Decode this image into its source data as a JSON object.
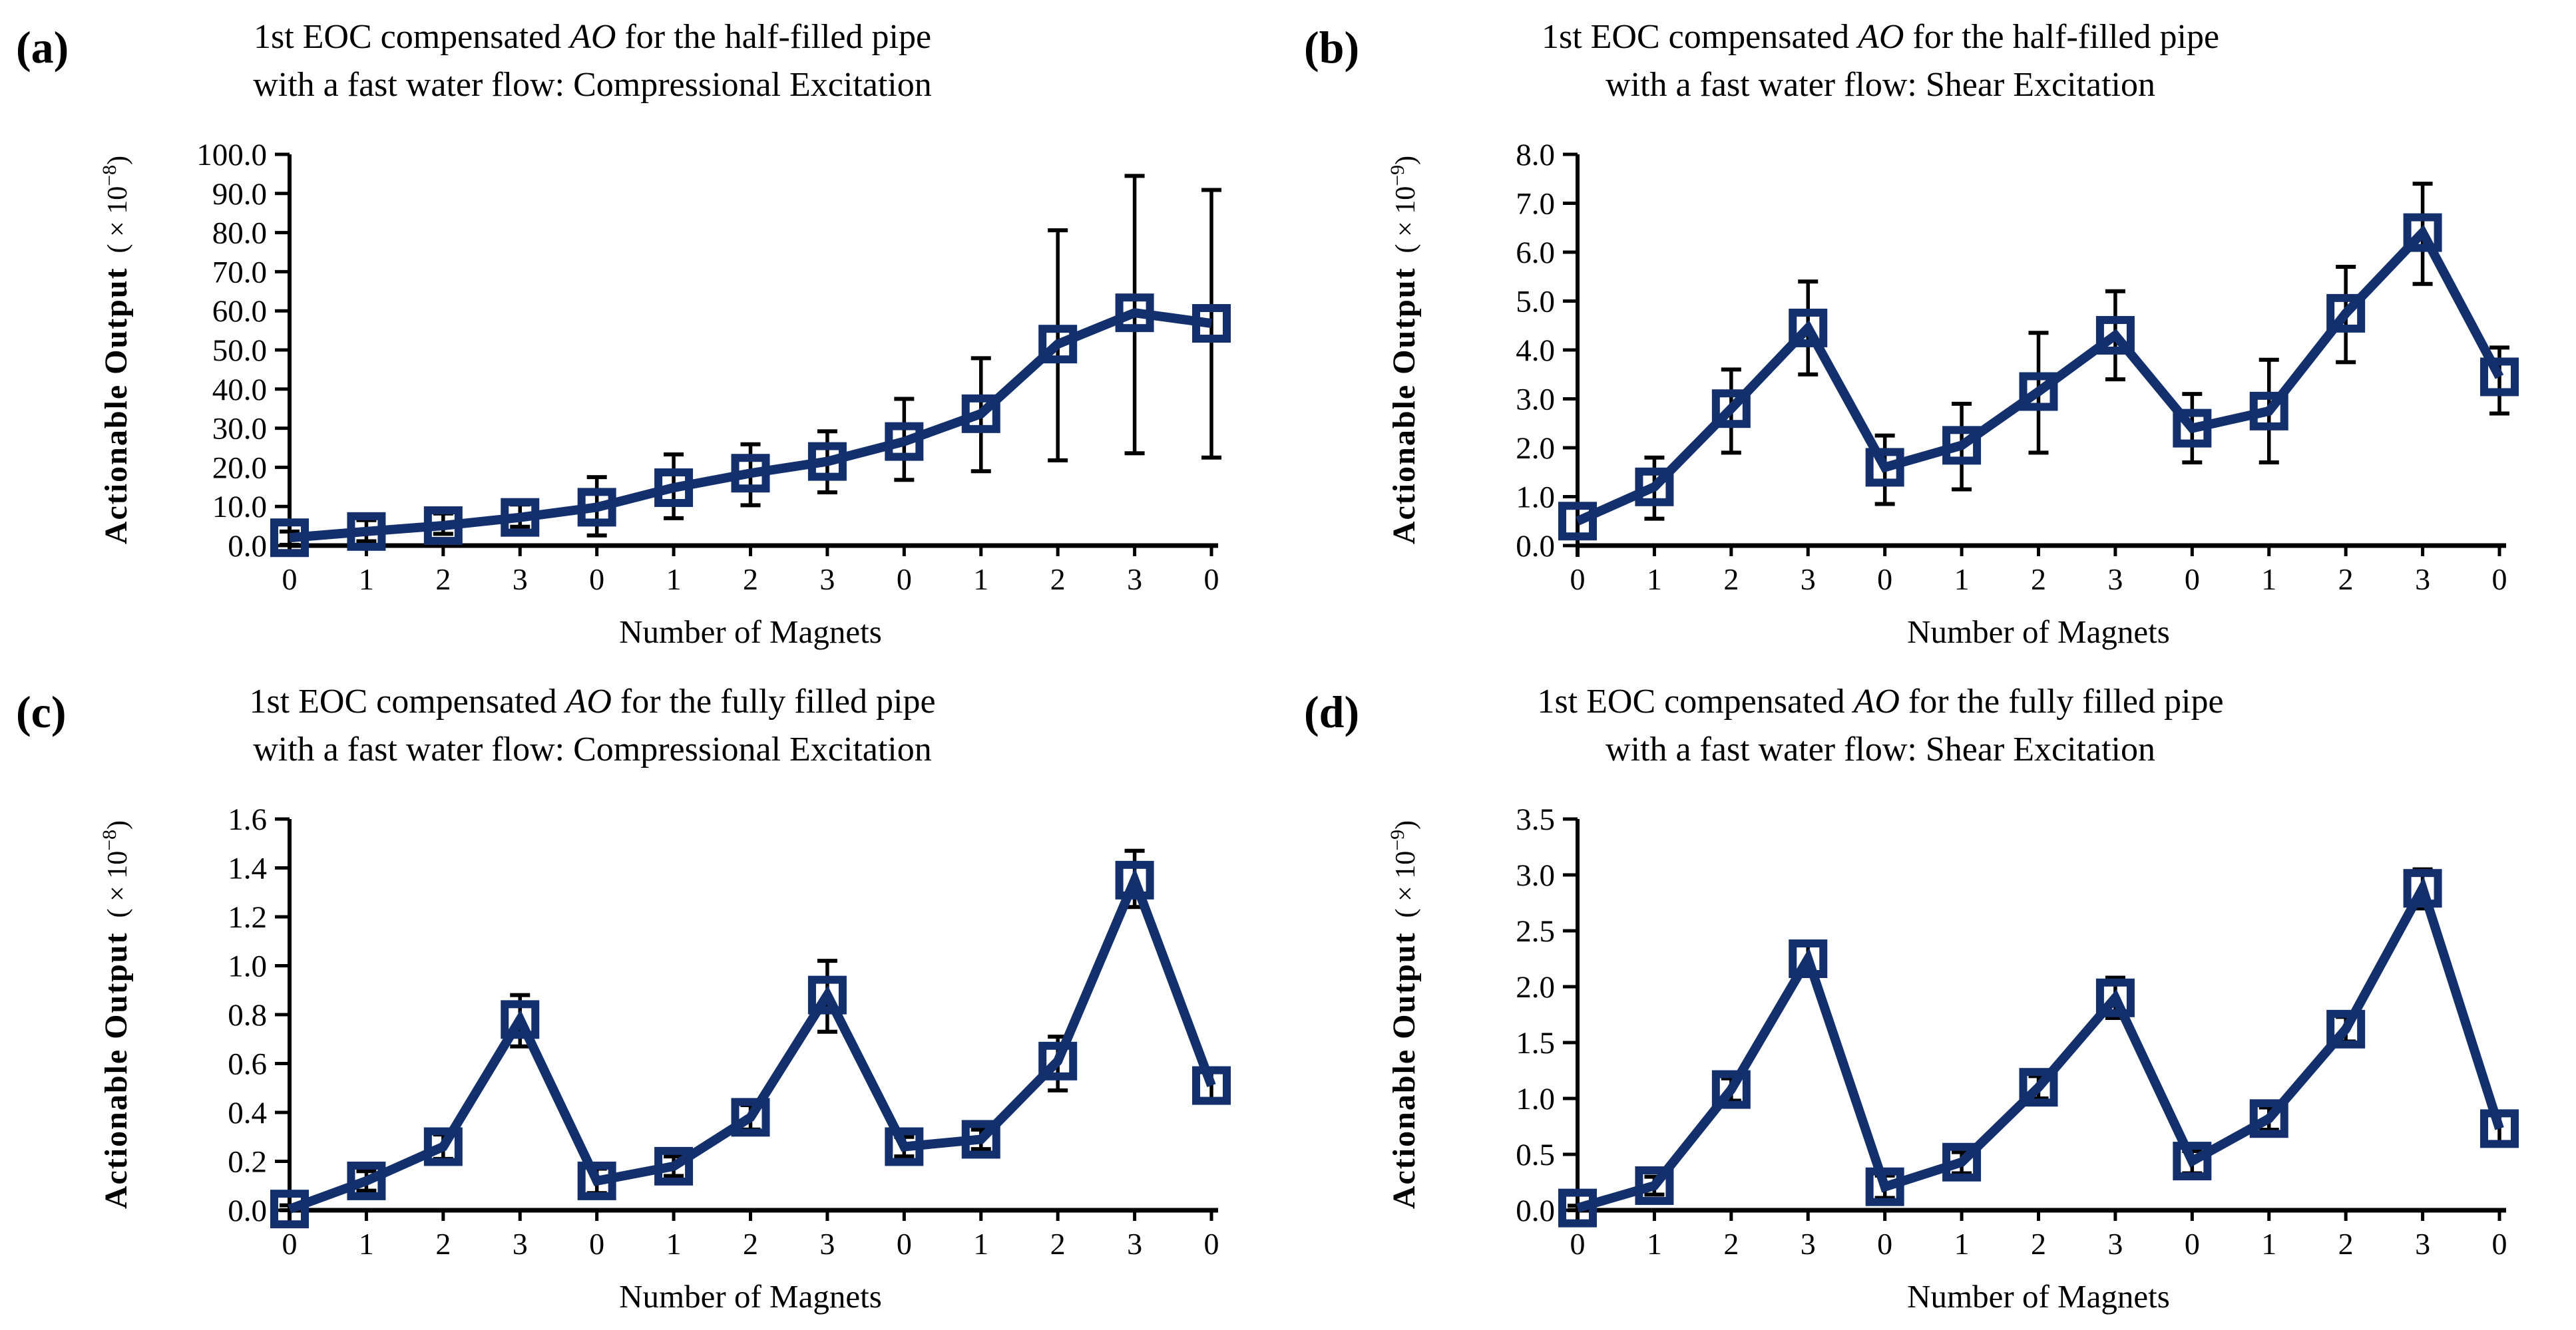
{
  "figure": {
    "background": "#ffffff",
    "colors": {
      "series": "#13306c",
      "error_bar": "#000000",
      "axis": "#000000",
      "text": "#000000"
    }
  },
  "chart_data": [
    {
      "id": "a",
      "type": "line",
      "panel_label": "(a)",
      "title_lines": [
        "1st EOC compensated AO for the half-filled pipe",
        "with a fast water flow: Compressional Excitation"
      ],
      "title_italic_word": "AO",
      "ylabel": "Actionable Output",
      "y_unit_prefix": "( × 10",
      "y_unit_exp": "−8",
      "y_unit_suffix": ")",
      "xlabel": "Number of Magnets",
      "ylim": [
        0,
        100
      ],
      "ystep": 10,
      "tick_decimals": 1,
      "grid": false,
      "legend": null,
      "categories": [
        "0",
        "1",
        "2",
        "3",
        "0",
        "1",
        "2",
        "3",
        "0",
        "1",
        "2",
        "3",
        "0"
      ],
      "values": [
        2.0,
        3.6,
        5.1,
        7.2,
        9.8,
        14.8,
        18.5,
        21.5,
        26.6,
        33.7,
        51.5,
        59.5,
        56.8
      ],
      "err_low": [
        0.2,
        1.1,
        3.0,
        4.8,
        2.6,
        7.0,
        10.3,
        13.6,
        16.8,
        19.0,
        21.8,
        23.6,
        22.5
      ],
      "err_high": [
        3.6,
        6.5,
        8.2,
        10.5,
        17.5,
        23.3,
        25.9,
        29.2,
        37.5,
        47.9,
        80.6,
        94.5,
        90.9
      ]
    },
    {
      "id": "b",
      "type": "line",
      "panel_label": "(b)",
      "title_lines": [
        "1st EOC compensated AO for the half-filled pipe",
        "with a fast water flow: Shear Excitation"
      ],
      "title_italic_word": "AO",
      "ylabel": "Actionable Output",
      "y_unit_prefix": "( × 10",
      "y_unit_exp": "−9",
      "y_unit_suffix": ")",
      "xlabel": "Number of Magnets",
      "ylim": [
        0,
        8
      ],
      "ystep": 1,
      "tick_decimals": 1,
      "grid": false,
      "legend": null,
      "categories": [
        "0",
        "1",
        "2",
        "3",
        "0",
        "1",
        "2",
        "3",
        "0",
        "1",
        "2",
        "3",
        "0"
      ],
      "values": [
        0.5,
        1.2,
        2.8,
        4.45,
        1.6,
        2.05,
        3.15,
        4.3,
        2.4,
        2.75,
        4.75,
        6.4,
        3.45
      ],
      "err_low": [
        0.15,
        0.55,
        1.9,
        3.5,
        0.85,
        1.15,
        1.9,
        3.4,
        1.7,
        1.7,
        3.75,
        5.35,
        2.7
      ],
      "err_high": [
        0.85,
        1.8,
        3.6,
        5.4,
        2.25,
        2.9,
        4.35,
        5.2,
        3.1,
        3.8,
        5.7,
        7.4,
        4.05
      ]
    },
    {
      "id": "c",
      "type": "line",
      "panel_label": "(c)",
      "title_lines": [
        "1st EOC compensated AO for the fully filled pipe",
        "with a fast water flow: Compressional Excitation"
      ],
      "title_italic_word": "AO",
      "ylabel": "Actionable Output",
      "y_unit_prefix": "( × 10",
      "y_unit_exp": "−8",
      "y_unit_suffix": ")",
      "xlabel": "Number of Magnets",
      "ylim": [
        0,
        1.6
      ],
      "ystep": 0.2,
      "tick_decimals": 1,
      "grid": false,
      "legend": null,
      "categories": [
        "0",
        "1",
        "2",
        "3",
        "0",
        "1",
        "2",
        "3",
        "0",
        "1",
        "2",
        "3",
        "0"
      ],
      "values": [
        0.005,
        0.12,
        0.26,
        0.78,
        0.12,
        0.18,
        0.38,
        0.88,
        0.26,
        0.29,
        0.61,
        1.35,
        0.51
      ],
      "err_low": [
        0.0,
        0.08,
        0.21,
        0.67,
        0.07,
        0.14,
        0.33,
        0.73,
        0.22,
        0.25,
        0.49,
        1.24,
        0.44
      ],
      "err_high": [
        0.02,
        0.16,
        0.31,
        0.88,
        0.17,
        0.22,
        0.43,
        1.02,
        0.3,
        0.33,
        0.71,
        1.47,
        0.58
      ]
    },
    {
      "id": "d",
      "type": "line",
      "panel_label": "(d)",
      "title_lines": [
        "1st EOC compensated AO for the fully filled pipe",
        "with a fast water flow: Shear Excitation"
      ],
      "title_italic_word": "AO",
      "ylabel": "Actionable Output",
      "y_unit_prefix": "( × 10",
      "y_unit_exp": "−9",
      "y_unit_suffix": ")",
      "xlabel": "Number of Magnets",
      "ylim": [
        0,
        3.5
      ],
      "ystep": 0.5,
      "tick_decimals": 1,
      "grid": false,
      "legend": null,
      "categories": [
        "0",
        "1",
        "2",
        "3",
        "0",
        "1",
        "2",
        "3",
        "0",
        "1",
        "2",
        "3",
        "0"
      ],
      "values": [
        0.02,
        0.22,
        1.08,
        2.25,
        0.21,
        0.43,
        1.1,
        1.9,
        0.44,
        0.82,
        1.62,
        2.88,
        0.73
      ],
      "err_low": [
        0.0,
        0.14,
        0.98,
        2.12,
        0.11,
        0.33,
        1.0,
        1.72,
        0.33,
        0.72,
        1.51,
        2.7,
        0.6
      ],
      "err_high": [
        0.04,
        0.3,
        1.18,
        2.37,
        0.31,
        0.52,
        1.2,
        2.08,
        0.53,
        0.92,
        1.73,
        3.05,
        0.86
      ]
    }
  ]
}
